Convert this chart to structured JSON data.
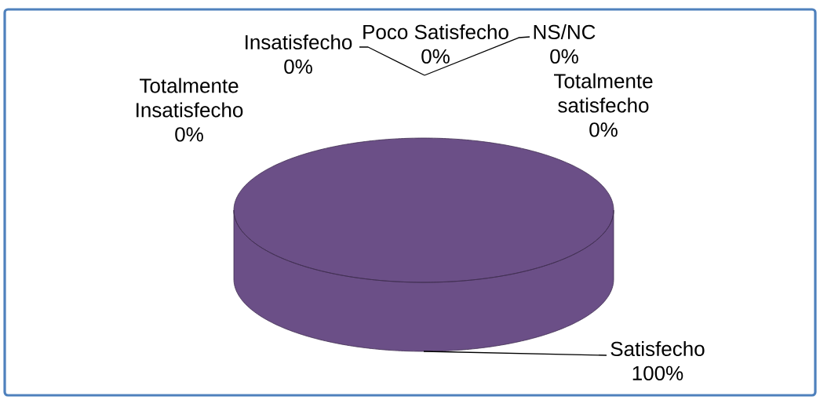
{
  "chart_data": {
    "type": "pie",
    "categories": [
      "Totalmente satisfecho",
      "Satisfecho",
      "Poco Satisfecho",
      "Insatisfecho",
      "Totalmente Insatisfecho",
      "NS/NC"
    ],
    "values": [
      0,
      100,
      0,
      0,
      0,
      0
    ],
    "colors": [
      null,
      "#6b4f87",
      null,
      null,
      null,
      null
    ],
    "value_labels": [
      "0%",
      "100%",
      "0%",
      "0%",
      "0%",
      "0%"
    ]
  }
}
